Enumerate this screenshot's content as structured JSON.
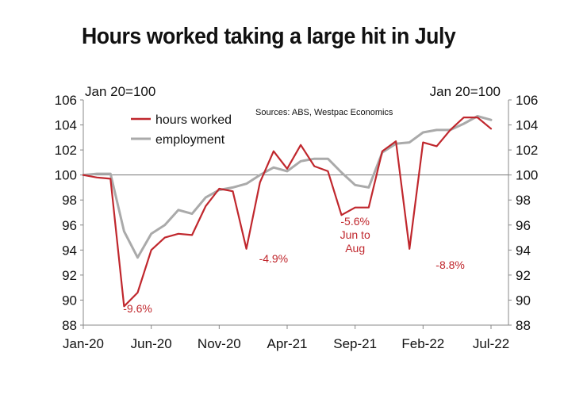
{
  "chart_data": {
    "type": "line",
    "title": "Hours worked taking a large hit in July",
    "source": "Sources: ABS, Westpac Economics",
    "left_axis_label": "Jan 20=100",
    "right_axis_label": "Jan 20=100",
    "ylim": [
      88,
      106
    ],
    "y_ticks": [
      88,
      90,
      92,
      94,
      96,
      98,
      100,
      102,
      104,
      106
    ],
    "reference_line": 100,
    "x_tick_labels": [
      "Jan-20",
      "Jun-20",
      "Nov-20",
      "Apr-21",
      "Sep-21",
      "Feb-22",
      "Jul-22"
    ],
    "x_tick_indices": [
      0,
      5,
      10,
      15,
      20,
      25,
      30
    ],
    "x": [
      "Jan-20",
      "Feb-20",
      "Mar-20",
      "Apr-20",
      "May-20",
      "Jun-20",
      "Jul-20",
      "Aug-20",
      "Sep-20",
      "Oct-20",
      "Nov-20",
      "Dec-20",
      "Jan-21",
      "Feb-21",
      "Mar-21",
      "Apr-21",
      "May-21",
      "Jun-21",
      "Jul-21",
      "Aug-21",
      "Sep-21",
      "Oct-21",
      "Nov-21",
      "Dec-21",
      "Jan-22",
      "Feb-22",
      "Mar-22",
      "Apr-22",
      "May-22",
      "Jun-22",
      "Jul-22"
    ],
    "series": [
      {
        "name": "hours worked",
        "color": "#c0272d",
        "values": [
          100.0,
          99.8,
          99.7,
          89.5,
          90.6,
          94.0,
          95.0,
          95.3,
          95.2,
          97.5,
          98.9,
          98.7,
          94.1,
          99.4,
          101.9,
          100.5,
          102.4,
          100.7,
          100.3,
          96.8,
          97.4,
          97.4,
          101.9,
          102.7,
          94.1,
          102.6,
          102.3,
          103.6,
          104.6,
          104.6,
          103.7
        ]
      },
      {
        "name": "employment",
        "color": "#aaaaaa",
        "values": [
          100.0,
          100.1,
          100.1,
          95.5,
          93.4,
          95.3,
          96.0,
          97.2,
          96.9,
          98.2,
          98.8,
          99.0,
          99.3,
          100.0,
          100.6,
          100.3,
          101.1,
          101.3,
          101.3,
          100.2,
          99.2,
          99.0,
          101.8,
          102.5,
          102.6,
          103.4,
          103.6,
          103.6,
          104.1,
          104.7,
          104.4
        ]
      }
    ],
    "annotations": [
      {
        "text": "-9.6%",
        "x_index": 4,
        "y": 89.0
      },
      {
        "text": "-4.9%",
        "x_index": 14,
        "y": 93.0
      },
      {
        "lines": [
          "-5.6%",
          "Jun to",
          "Aug"
        ],
        "x_index": 20,
        "y": 96.0
      },
      {
        "text": "-8.8%",
        "x_index": 27,
        "y": 92.5
      }
    ]
  }
}
